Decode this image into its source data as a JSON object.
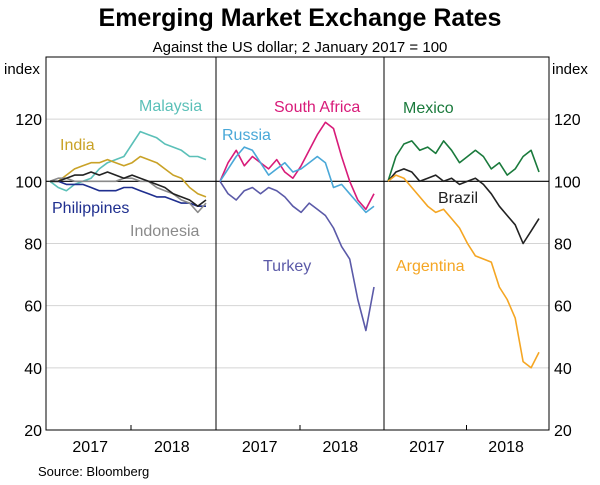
{
  "chart_data": {
    "type": "line",
    "title": "Emerging Market Exchange Rates",
    "subtitle": "Against the US dollar; 2 January 2017 = 100",
    "ylabel_left": "index",
    "ylabel_right": "index",
    "ylim": [
      20,
      140
    ],
    "yticks": [
      20,
      40,
      60,
      80,
      100,
      120
    ],
    "source": "Source:   Bloomberg",
    "panels": [
      {
        "xticks": [
          "2017",
          "2018"
        ],
        "series": [
          {
            "name": "Malaysia",
            "color": "#5bc0b8",
            "x": [
              0,
              0.1,
              0.2,
              0.3,
              0.4,
              0.5,
              0.6,
              0.7,
              0.8,
              0.9,
              1.0,
              1.1,
              1.2,
              1.3,
              1.4,
              1.5,
              1.6,
              1.7,
              1.8,
              1.9
            ],
            "values": [
              100,
              98,
              97,
              99,
              100,
              101,
              104,
              106,
              107,
              108,
              112,
              116,
              115,
              114,
              112,
              111,
              110,
              108,
              108,
              107
            ]
          },
          {
            "name": "India",
            "color": "#c9a227",
            "x": [
              0,
              0.1,
              0.2,
              0.3,
              0.4,
              0.5,
              0.6,
              0.7,
              0.8,
              0.9,
              1.0,
              1.1,
              1.2,
              1.3,
              1.4,
              1.5,
              1.6,
              1.7,
              1.8,
              1.9
            ],
            "values": [
              100,
              100,
              102,
              104,
              105,
              106,
              106,
              107,
              106,
              105,
              106,
              108,
              107,
              106,
              104,
              102,
              101,
              98,
              96,
              95
            ]
          },
          {
            "name": "Philippines",
            "color": "#1f2f8f",
            "x": [
              0,
              0.1,
              0.2,
              0.3,
              0.4,
              0.5,
              0.6,
              0.7,
              0.8,
              0.9,
              1.0,
              1.1,
              1.2,
              1.3,
              1.4,
              1.5,
              1.6,
              1.7,
              1.8,
              1.9
            ],
            "values": [
              100,
              100,
              99,
              99,
              99,
              98,
              97,
              97,
              97,
              98,
              98,
              97,
              96,
              95,
              95,
              94,
              93,
              93,
              92,
              92
            ]
          },
          {
            "name": "Indonesia",
            "color": "#8a8a8a",
            "x": [
              0,
              0.1,
              0.2,
              0.3,
              0.4,
              0.5,
              0.6,
              0.7,
              0.8,
              0.9,
              1.0,
              1.1,
              1.2,
              1.3,
              1.4,
              1.5,
              1.6,
              1.7,
              1.8,
              1.9
            ],
            "values": [
              100,
              101,
              101,
              100,
              100,
              100,
              100,
              100,
              100,
              101,
              101,
              100,
              100,
              98,
              97,
              96,
              94,
              93,
              90,
              93
            ]
          },
          {
            "name": "Black unlabelled",
            "color": "#222222",
            "x": [
              0,
              0.1,
              0.2,
              0.3,
              0.4,
              0.5,
              0.6,
              0.7,
              0.8,
              0.9,
              1.0,
              1.1,
              1.2,
              1.3,
              1.4,
              1.5,
              1.6,
              1.7,
              1.8,
              1.9
            ],
            "values": [
              100,
              100,
              101,
              102,
              102,
              103,
              102,
              103,
              102,
              101,
              102,
              101,
              100,
              99,
              98,
              96,
              95,
              94,
              92,
              94
            ]
          }
        ]
      },
      {
        "xticks": [
          "2017",
          "2018"
        ],
        "series": [
          {
            "name": "South Africa",
            "color": "#d81b79",
            "x": [
              0,
              0.1,
              0.2,
              0.3,
              0.4,
              0.5,
              0.6,
              0.7,
              0.8,
              0.9,
              1.0,
              1.1,
              1.2,
              1.3,
              1.4,
              1.5,
              1.6,
              1.7,
              1.8,
              1.9
            ],
            "values": [
              100,
              106,
              110,
              105,
              108,
              106,
              104,
              107,
              103,
              101,
              105,
              110,
              115,
              119,
              117,
              108,
              100,
              94,
              91,
              96
            ]
          },
          {
            "name": "Russia",
            "color": "#4aa8d8",
            "x": [
              0,
              0.1,
              0.2,
              0.3,
              0.4,
              0.5,
              0.6,
              0.7,
              0.8,
              0.9,
              1.0,
              1.1,
              1.2,
              1.3,
              1.4,
              1.5,
              1.6,
              1.7,
              1.8,
              1.9
            ],
            "values": [
              100,
              104,
              108,
              111,
              110,
              106,
              102,
              104,
              106,
              103,
              104,
              106,
              108,
              106,
              98,
              99,
              96,
              93,
              90,
              92
            ]
          },
          {
            "name": "Turkey",
            "color": "#5b5aa8",
            "x": [
              0,
              0.1,
              0.2,
              0.3,
              0.4,
              0.5,
              0.6,
              0.7,
              0.8,
              0.9,
              1.0,
              1.1,
              1.2,
              1.3,
              1.4,
              1.5,
              1.6,
              1.7,
              1.8,
              1.9
            ],
            "values": [
              100,
              96,
              94,
              97,
              98,
              96,
              98,
              97,
              95,
              92,
              90,
              93,
              91,
              89,
              85,
              79,
              75,
              62,
              52,
              66
            ]
          }
        ]
      },
      {
        "xticks": [
          "2017",
          "2018"
        ],
        "series": [
          {
            "name": "Mexico",
            "color": "#1a7a3c",
            "x": [
              0,
              0.1,
              0.2,
              0.3,
              0.4,
              0.5,
              0.6,
              0.7,
              0.8,
              0.9,
              1.0,
              1.1,
              1.2,
              1.3,
              1.4,
              1.5,
              1.6,
              1.7,
              1.8,
              1.9
            ],
            "values": [
              100,
              108,
              112,
              113,
              110,
              111,
              109,
              113,
              110,
              106,
              108,
              110,
              108,
              104,
              106,
              102,
              104,
              108,
              110,
              103
            ]
          },
          {
            "name": "Brazil",
            "color": "#222222",
            "x": [
              0,
              0.1,
              0.2,
              0.3,
              0.4,
              0.5,
              0.6,
              0.7,
              0.8,
              0.9,
              1.0,
              1.1,
              1.2,
              1.3,
              1.4,
              1.5,
              1.6,
              1.7,
              1.8,
              1.9
            ],
            "values": [
              100,
              103,
              104,
              103,
              100,
              101,
              102,
              100,
              101,
              99,
              100,
              101,
              99,
              96,
              92,
              89,
              86,
              80,
              84,
              88
            ]
          },
          {
            "name": "Argentina",
            "color": "#f5a623",
            "x": [
              0,
              0.1,
              0.2,
              0.3,
              0.4,
              0.5,
              0.6,
              0.7,
              0.8,
              0.9,
              1.0,
              1.1,
              1.2,
              1.3,
              1.4,
              1.5,
              1.6,
              1.7,
              1.8,
              1.9
            ],
            "values": [
              100,
              102,
              101,
              98,
              95,
              92,
              90,
              91,
              88,
              85,
              80,
              76,
              75,
              74,
              66,
              62,
              56,
              42,
              40,
              45
            ]
          }
        ]
      }
    ],
    "labels": [
      {
        "text": "Malaysia",
        "panel": 0,
        "color": "#5bc0b8"
      },
      {
        "text": "India",
        "panel": 0,
        "color": "#c9a227"
      },
      {
        "text": "Philippines",
        "panel": 0,
        "color": "#1f2f8f"
      },
      {
        "text": "Indonesia",
        "panel": 0,
        "color": "#8a8a8a"
      },
      {
        "text": "South Africa",
        "panel": 1,
        "color": "#d81b79"
      },
      {
        "text": "Russia",
        "panel": 1,
        "color": "#4aa8d8"
      },
      {
        "text": "Turkey",
        "panel": 1,
        "color": "#5b5aa8"
      },
      {
        "text": "Mexico",
        "panel": 2,
        "color": "#1a7a3c"
      },
      {
        "text": "Brazil",
        "panel": 2,
        "color": "#222222"
      },
      {
        "text": "Argentina",
        "panel": 2,
        "color": "#f5a623"
      }
    ]
  }
}
